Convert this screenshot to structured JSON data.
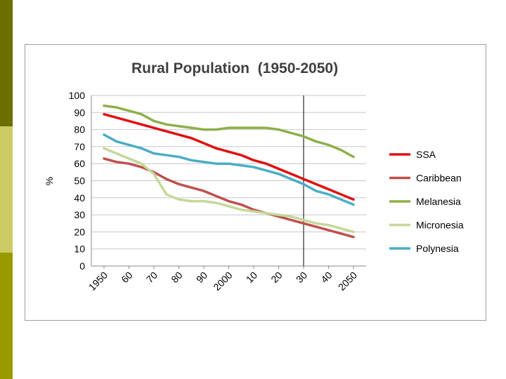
{
  "slide": {
    "accent_colors": [
      "#6b6f00",
      "#cccc66",
      "#999900"
    ]
  },
  "chart_data": {
    "type": "line",
    "title": "Rural Population  (1950-2050)",
    "xlabel": "",
    "ylabel": "%",
    "ylim": [
      0,
      100
    ],
    "yticks": [
      0,
      10,
      20,
      30,
      40,
      50,
      60,
      70,
      80,
      90,
      100
    ],
    "x": [
      1950,
      1955,
      1960,
      1965,
      1970,
      1975,
      1980,
      1985,
      1990,
      1995,
      2000,
      2005,
      2010,
      2015,
      2020,
      2025,
      2030,
      2035,
      2040,
      2045,
      2050
    ],
    "x_tick_labels": [
      "1950",
      "60",
      "70",
      "80",
      "90",
      "2000",
      "10",
      "20",
      "30",
      "40",
      "2050"
    ],
    "x_tick_values": [
      1950,
      1960,
      1970,
      1980,
      1990,
      2000,
      2010,
      2020,
      2030,
      2040,
      2050
    ],
    "vertical_marker": 2030,
    "grid": true,
    "legend_position": "right",
    "series": [
      {
        "name": "SSA",
        "color": "#e01010",
        "values": [
          89,
          87,
          85,
          83,
          81,
          79,
          77,
          75,
          72,
          69,
          67,
          65,
          62,
          60,
          57,
          54,
          51,
          48,
          45,
          42,
          39
        ]
      },
      {
        "name": "Caribbean",
        "color": "#c0504d",
        "values": [
          63,
          61,
          60,
          58,
          55,
          51,
          48,
          46,
          44,
          41,
          38,
          36,
          33,
          31,
          29,
          27,
          25,
          23,
          21,
          19,
          17
        ]
      },
      {
        "name": "Melanesia",
        "color": "#8db04a",
        "values": [
          94,
          93,
          91,
          89,
          85,
          83,
          82,
          81,
          80,
          80,
          81,
          81,
          81,
          81,
          80,
          78,
          76,
          73,
          71,
          68,
          64
        ]
      },
      {
        "name": "Micronesia",
        "color": "#c4d89a",
        "values": [
          69,
          66,
          63,
          60,
          54,
          42,
          39,
          38,
          38,
          37,
          35,
          33,
          32,
          31,
          30,
          29,
          27,
          25,
          24,
          22,
          20
        ]
      },
      {
        "name": "Polynesia",
        "color": "#4bacc6",
        "values": [
          77,
          73,
          71,
          69,
          66,
          65,
          64,
          62,
          61,
          60,
          60,
          59,
          58,
          56,
          54,
          51,
          48,
          44,
          42,
          39,
          36
        ]
      }
    ]
  }
}
